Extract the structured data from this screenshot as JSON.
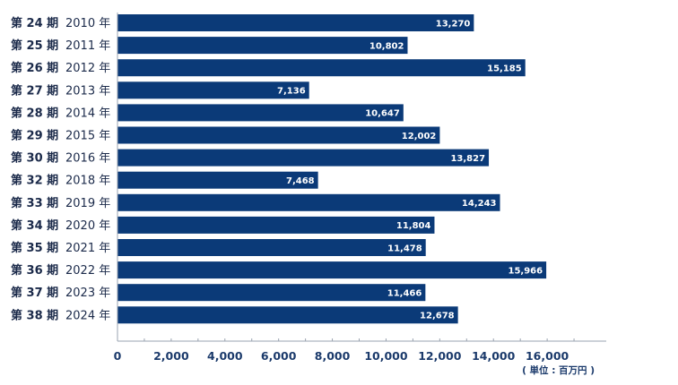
{
  "chart_data": {
    "type": "bar",
    "orientation": "horizontal",
    "categories": [
      {
        "term": "第 24 期",
        "year": "2010 年"
      },
      {
        "term": "第 25 期",
        "year": "2011 年"
      },
      {
        "term": "第 26 期",
        "year": "2012 年"
      },
      {
        "term": "第 27 期",
        "year": "2013 年"
      },
      {
        "term": "第 28 期",
        "year": "2014 年"
      },
      {
        "term": "第 29 期",
        "year": "2015 年"
      },
      {
        "term": "第 30 期",
        "year": "2016 年"
      },
      {
        "term": "第 32 期",
        "year": "2018 年"
      },
      {
        "term": "第 33 期",
        "year": "2019 年"
      },
      {
        "term": "第 34 期",
        "year": "2020 年"
      },
      {
        "term": "第 35 期",
        "year": "2021 年"
      },
      {
        "term": "第 36 期",
        "year": "2022 年"
      },
      {
        "term": "第 37 期",
        "year": "2023 年"
      },
      {
        "term": "第 38 期",
        "year": "2024 年"
      }
    ],
    "values": [
      13270,
      10802,
      15185,
      7136,
      10647,
      12002,
      13827,
      7468,
      14243,
      11804,
      11478,
      15966,
      11466,
      12678
    ],
    "value_labels": [
      "13,270",
      "10,802",
      "15,185",
      "7,136",
      "10,647",
      "12,002",
      "13,827",
      "7,468",
      "14,243",
      "11,804",
      "11,478",
      "15,966",
      "11,466",
      "12,678"
    ],
    "xlim": [
      0,
      18200
    ],
    "x_ticks": [
      0,
      2000,
      4000,
      6000,
      8000,
      10000,
      12000,
      14000,
      16000
    ],
    "x_tick_labels": [
      "0",
      "2,000",
      "4,000",
      "6,000",
      "8,000",
      "10,000",
      "12,000",
      "14,000",
      "16,000"
    ],
    "unit": "( 単位 : 百万円 )",
    "bar_color": "#0b3a78",
    "axis_color": "#9aa3b0",
    "grid": false
  }
}
